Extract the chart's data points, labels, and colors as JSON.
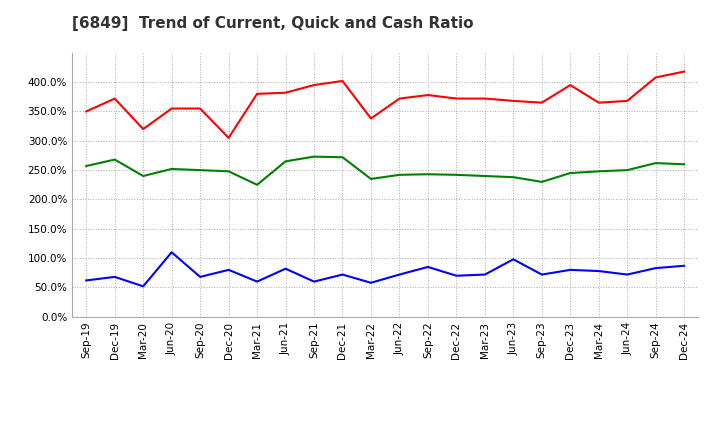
{
  "title": "[6849]  Trend of Current, Quick and Cash Ratio",
  "x_labels": [
    "Sep-19",
    "Dec-19",
    "Mar-20",
    "Jun-20",
    "Sep-20",
    "Dec-20",
    "Mar-21",
    "Jun-21",
    "Sep-21",
    "Dec-21",
    "Mar-22",
    "Jun-22",
    "Sep-22",
    "Dec-22",
    "Mar-23",
    "Jun-23",
    "Sep-23",
    "Dec-23",
    "Mar-24",
    "Jun-24",
    "Sep-24",
    "Dec-24"
  ],
  "current_ratio": [
    3.5,
    3.72,
    3.2,
    3.55,
    3.55,
    3.05,
    3.8,
    3.82,
    3.95,
    4.02,
    3.38,
    3.72,
    3.78,
    3.72,
    3.72,
    3.68,
    3.65,
    3.95,
    3.65,
    3.68,
    4.08,
    4.18
  ],
  "quick_ratio": [
    2.57,
    2.68,
    2.4,
    2.52,
    2.5,
    2.48,
    2.25,
    2.65,
    2.73,
    2.72,
    2.35,
    2.42,
    2.43,
    2.42,
    2.4,
    2.38,
    2.3,
    2.45,
    2.48,
    2.5,
    2.62,
    2.6
  ],
  "cash_ratio": [
    0.62,
    0.68,
    0.52,
    1.1,
    0.68,
    0.8,
    0.6,
    0.82,
    0.6,
    0.72,
    0.58,
    0.72,
    0.85,
    0.7,
    0.72,
    0.98,
    0.72,
    0.8,
    0.78,
    0.72,
    0.83,
    0.87
  ],
  "current_color": "#ff0000",
  "quick_color": "#008000",
  "cash_color": "#0000ff",
  "ylim": [
    0.0,
    4.5
  ],
  "yticks": [
    0.0,
    0.5,
    1.0,
    1.5,
    2.0,
    2.5,
    3.0,
    3.5,
    4.0
  ],
  "background_color": "#ffffff",
  "plot_bg_color": "#ffffff",
  "grid_color": "#aaaaaa",
  "title_fontsize": 11,
  "label_fontsize": 7.5,
  "legend_fontsize": 9
}
